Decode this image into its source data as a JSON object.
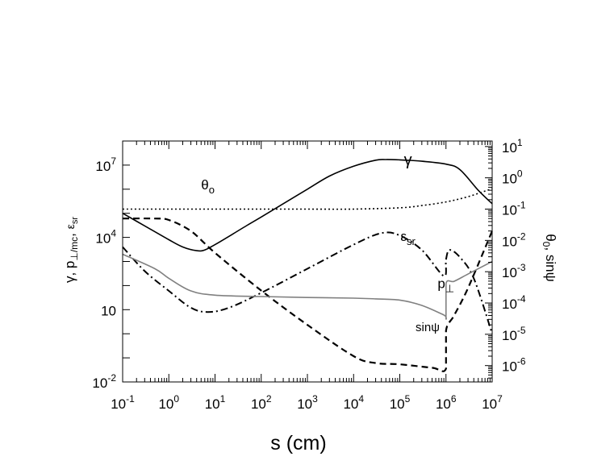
{
  "chart_data": {
    "type": "line",
    "title": "",
    "xlabel": "s (cm)",
    "ylabel_left": "γ, p⊥/mc, εsr",
    "ylabel_right": "θ0, sinψ",
    "x_scale": "log",
    "y_left_scale": "log",
    "y_right_scale": "log",
    "xlim": [
      0.1,
      10000000
    ],
    "ylim_left": [
      0.01,
      100000000
    ],
    "ylim_right": [
      3e-07,
      15
    ],
    "grid": false,
    "x_ticks": [
      {
        "base": "10",
        "exp": "-1"
      },
      {
        "base": "10",
        "exp": "0"
      },
      {
        "base": "10",
        "exp": "1"
      },
      {
        "base": "10",
        "exp": "2"
      },
      {
        "base": "10",
        "exp": "3"
      },
      {
        "base": "10",
        "exp": "4"
      },
      {
        "base": "10",
        "exp": "5"
      },
      {
        "base": "10",
        "exp": "6"
      },
      {
        "base": "10",
        "exp": "7"
      }
    ],
    "y_left_ticks": [
      {
        "base": "10",
        "exp": "-2",
        "value": 0.01
      },
      {
        "base": "10",
        "exp": "",
        "value": 10
      },
      {
        "base": "10",
        "exp": "4",
        "value": 10000
      },
      {
        "base": "10",
        "exp": "7",
        "value": 10000000
      }
    ],
    "y_right_ticks": [
      {
        "base": "10",
        "exp": "-6",
        "value": 1e-06
      },
      {
        "base": "10",
        "exp": "-5",
        "value": 1e-05
      },
      {
        "base": "10",
        "exp": "-4",
        "value": 0.0001
      },
      {
        "base": "10",
        "exp": "-3",
        "value": 0.001
      },
      {
        "base": "10",
        "exp": "-2",
        "value": 0.01
      },
      {
        "base": "10",
        "exp": "-1",
        "value": 0.1
      },
      {
        "base": "10",
        "exp": "0",
        "value": 1
      },
      {
        "base": "10",
        "exp": "1",
        "value": 10
      }
    ],
    "series": [
      {
        "name": "γ",
        "axis": "left",
        "style": "solid",
        "color": "#000000",
        "x": [
          0.1,
          0.3,
          1,
          2,
          4,
          6,
          10,
          20,
          50,
          100,
          300,
          1000,
          3000,
          10000,
          30000,
          50000,
          100000,
          300000,
          1000000,
          2000000,
          5000000,
          10000000
        ],
        "y": [
          100000,
          30000,
          8000,
          4000,
          2800,
          3000,
          5000,
          11000,
          32000,
          70000,
          250000,
          1000000,
          3500000,
          9000000,
          16000000,
          17000000,
          16500000,
          14500000,
          11000000,
          6500000,
          900000,
          250000
        ]
      },
      {
        "name": "θo",
        "axis": "right",
        "style": "dotted",
        "color": "#000000",
        "x": [
          0.1,
          1,
          10,
          100,
          1000,
          10000,
          100000,
          300000,
          1000000,
          3000000,
          10000000
        ],
        "y": [
          0.1,
          0.1,
          0.1,
          0.1,
          0.1,
          0.1,
          0.11,
          0.13,
          0.17,
          0.25,
          0.45
        ]
      },
      {
        "name": "sinψ",
        "axis": "right",
        "style": "dashed",
        "color": "#000000",
        "x": [
          0.1,
          0.5,
          1,
          3,
          10,
          100,
          1000,
          10000,
          30000,
          100000,
          500000,
          1000000,
          1000001,
          1500000,
          3000000,
          10000000
        ],
        "y": [
          0.05,
          0.05,
          0.045,
          0.02,
          0.004,
          0.00025,
          2e-05,
          2e-06,
          1.2e-06,
          1.1e-06,
          8.5e-07,
          8e-07,
          1.3e-05,
          4e-05,
          0.0003,
          0.02
        ]
      },
      {
        "name": "εsr",
        "axis": "left",
        "style": "dashdot",
        "color": "#000000",
        "x": [
          0.1,
          0.3,
          1,
          3,
          7,
          20,
          100,
          1000,
          10000,
          40000,
          100000,
          300000,
          900000,
          1000000,
          1200000,
          2000000,
          4000000,
          10000000
        ],
        "y": [
          4000,
          400,
          60,
          12,
          8,
          12,
          50,
          500,
          5000,
          15000,
          12000,
          3000,
          250,
          1200,
          3000,
          1500,
          200,
          1
        ]
      },
      {
        "name": "p⊥",
        "axis": "left",
        "style": "solid",
        "color": "#808080",
        "x": [
          0.1,
          0.5,
          1,
          3,
          10,
          100,
          1000,
          10000,
          30000,
          100000,
          300000,
          900000,
          1000000,
          1000001,
          1500000,
          3000000,
          10000000
        ],
        "y": [
          2000,
          500,
          200,
          60,
          40,
          35,
          32,
          30,
          28,
          25,
          15,
          6,
          5,
          120,
          150,
          300,
          1000
        ]
      }
    ],
    "annotations": [
      {
        "text": "γ",
        "x": 150000,
        "y": 10000000,
        "axis": "left",
        "size": 20
      },
      {
        "text": "θo",
        "x": 7,
        "y": 1000000,
        "axis": "left",
        "size": 17
      },
      {
        "text": "εsr",
        "x": 150000,
        "y": 7000,
        "axis": "left",
        "size": 17
      },
      {
        "text": "p⊥",
        "x": 1000000,
        "y": 80,
        "axis": "left",
        "size": 17
      },
      {
        "text": "sinψ",
        "x": 400000,
        "y": 1.3,
        "axis": "left",
        "size": 15
      }
    ]
  }
}
